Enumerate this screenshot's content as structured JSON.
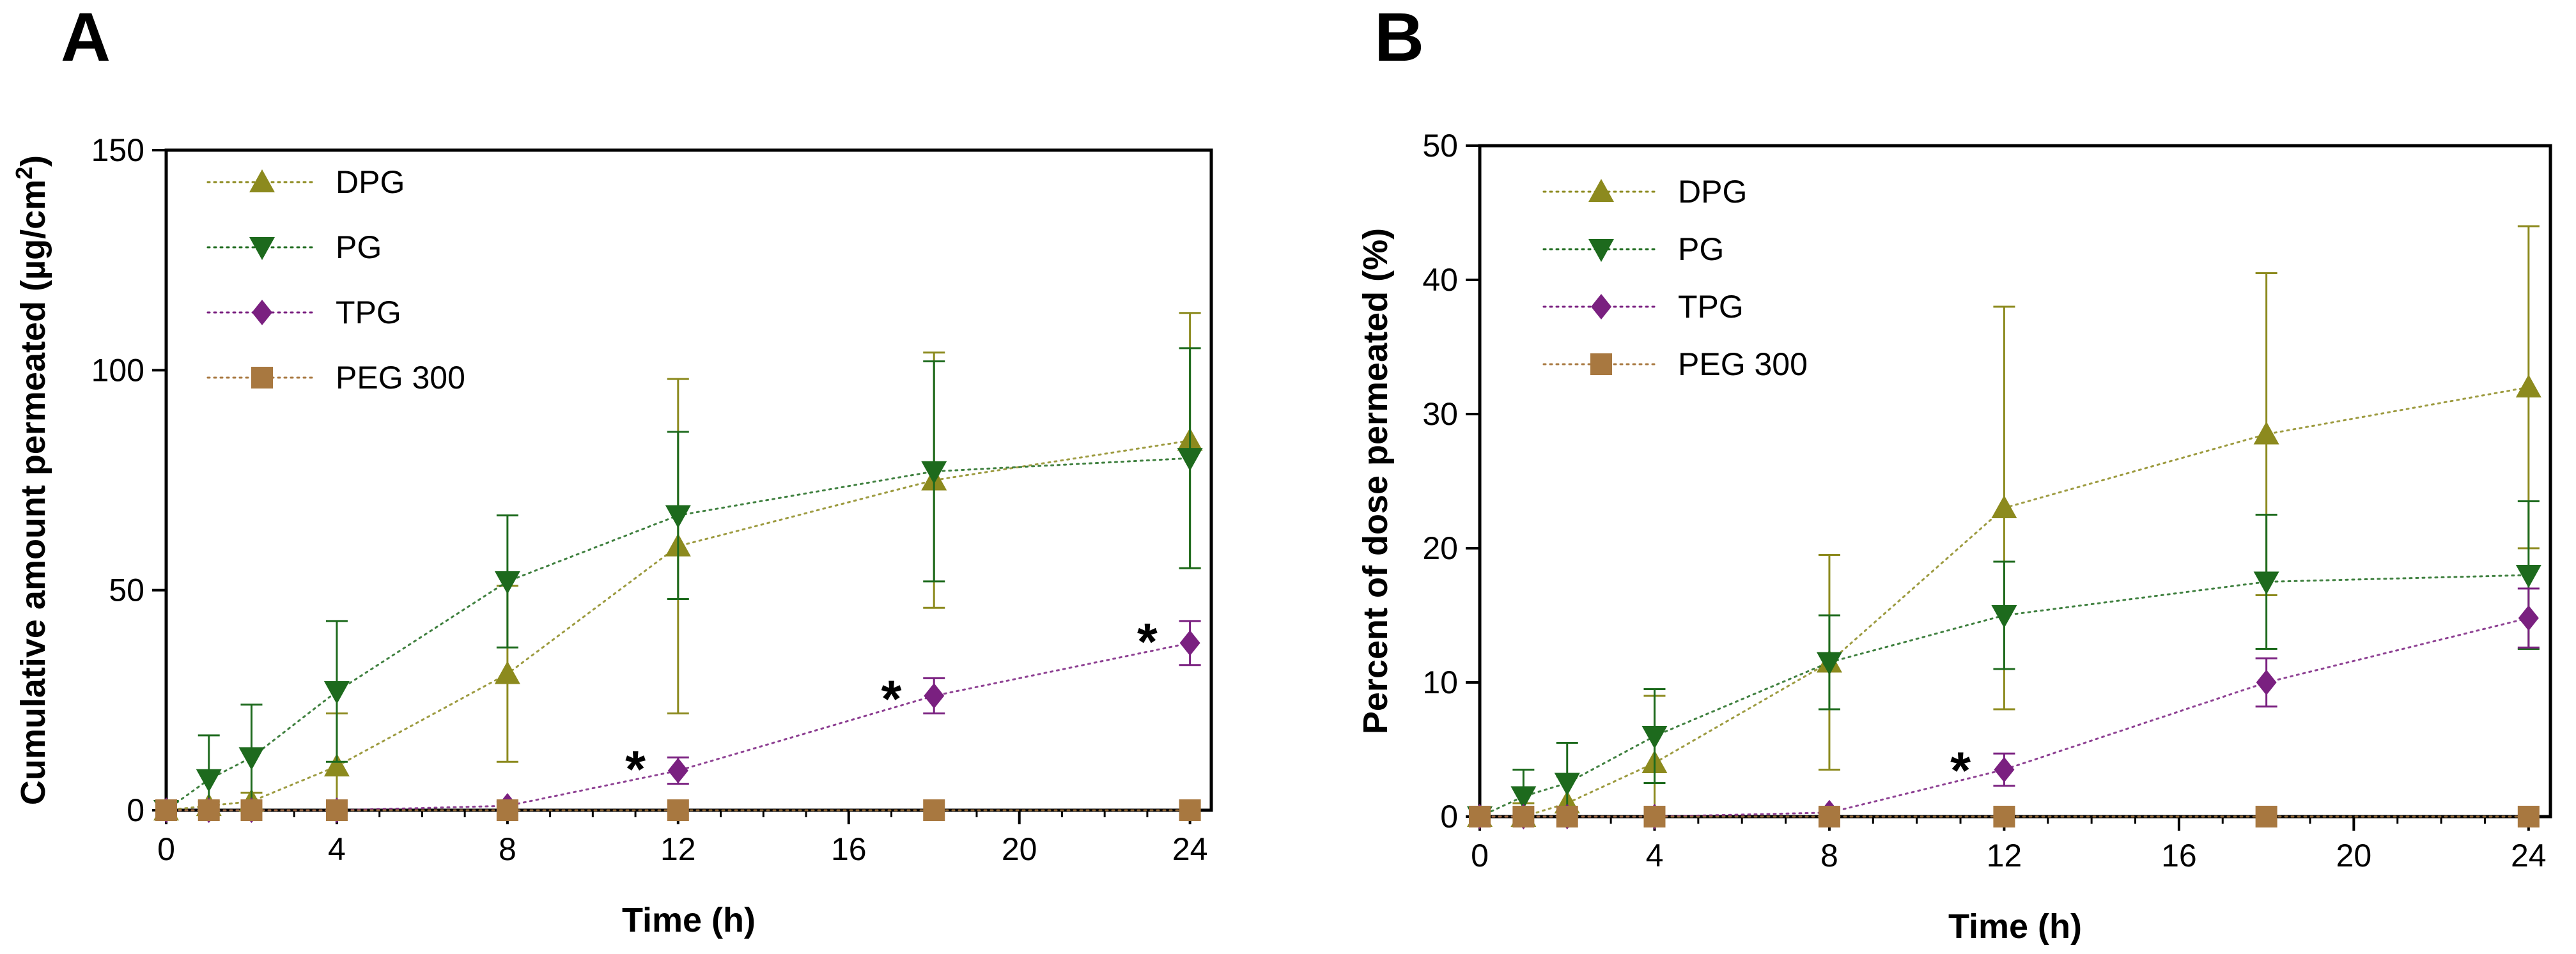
{
  "chart_data": [
    {
      "type": "line",
      "panel_label": "A",
      "title": "",
      "xlabel": "Time (h)",
      "ylabel_main": "Cumulative amount permeated (µg/cm",
      "ylabel_sup": "2",
      "ylabel_end": ")",
      "xlim": [
        0,
        24.5
      ],
      "ylim": [
        0,
        150
      ],
      "xticks": [
        0,
        4,
        8,
        12,
        16,
        20,
        24
      ],
      "yticks": [
        0,
        50,
        100,
        150
      ],
      "x": [
        0,
        1,
        2,
        4,
        8,
        12,
        18,
        24
      ],
      "legend_position": "top-left",
      "series": [
        {
          "name": "DPG",
          "marker": "triangle-up",
          "color": "#8C8A1E",
          "values": [
            0,
            1,
            2,
            10,
            31,
            60,
            75,
            84
          ],
          "errors": [
            0,
            1,
            2,
            12,
            20,
            38,
            29,
            29
          ]
        },
        {
          "name": "PG",
          "marker": "triangle-down",
          "color": "#1D6A1D",
          "values": [
            0,
            7,
            12,
            27,
            52,
            67,
            77,
            80
          ],
          "errors": [
            0,
            10,
            12,
            16,
            15,
            19,
            25,
            25
          ]
        },
        {
          "name": "TPG",
          "marker": "diamond",
          "color": "#7A2080",
          "values": [
            0,
            0,
            0,
            0,
            1,
            9,
            26,
            38
          ],
          "errors": [
            0,
            0,
            0,
            0,
            1,
            3,
            4,
            5
          ]
        },
        {
          "name": "PEG 300",
          "marker": "square",
          "color": "#A87840",
          "values": [
            0,
            0,
            0,
            0,
            0,
            0,
            0,
            0
          ],
          "errors": [
            0,
            0,
            0,
            0,
            0,
            0,
            0,
            0
          ]
        }
      ],
      "annotations": [
        {
          "text": "*",
          "x": 11,
          "y": 11
        },
        {
          "text": "*",
          "x": 17,
          "y": 27
        },
        {
          "text": "*",
          "x": 23,
          "y": 40
        }
      ]
    },
    {
      "type": "line",
      "panel_label": "B",
      "title": "",
      "xlabel": "Time (h)",
      "ylabel_main": "Percent of dose permeated (%)",
      "ylabel_sup": "",
      "ylabel_end": "",
      "xlim": [
        0,
        24.5
      ],
      "ylim": [
        0,
        50
      ],
      "xticks": [
        0,
        4,
        8,
        12,
        16,
        20,
        24
      ],
      "yticks": [
        0,
        10,
        20,
        30,
        40,
        50
      ],
      "x": [
        0,
        1,
        2,
        4,
        8,
        12,
        18,
        24
      ],
      "legend_position": "top-left",
      "series": [
        {
          "name": "DPG",
          "marker": "triangle-up",
          "color": "#8C8A1E",
          "values": [
            0,
            0,
            1,
            4,
            11.5,
            23,
            28.5,
            32
          ],
          "errors": [
            0,
            1,
            2,
            5,
            8,
            15,
            12,
            12
          ]
        },
        {
          "name": "PG",
          "marker": "triangle-down",
          "color": "#1D6A1D",
          "values": [
            0,
            1.5,
            2.5,
            6,
            11.5,
            15,
            17.5,
            18
          ],
          "errors": [
            0,
            2,
            3,
            3.5,
            3.5,
            4,
            5,
            5.5
          ]
        },
        {
          "name": "TPG",
          "marker": "diamond",
          "color": "#7A2080",
          "values": [
            0,
            0,
            0,
            0,
            0.3,
            3.5,
            10,
            14.8
          ],
          "errors": [
            0,
            0,
            0,
            0,
            0.3,
            1.2,
            1.8,
            2.2
          ]
        },
        {
          "name": "PEG 300",
          "marker": "square",
          "color": "#A87840",
          "values": [
            0,
            0,
            0,
            0,
            0,
            0,
            0,
            0
          ],
          "errors": [
            0,
            0,
            0,
            0,
            0,
            0,
            0,
            0
          ]
        }
      ],
      "annotations": [
        {
          "text": "*",
          "x": 11,
          "y": 4
        }
      ]
    }
  ]
}
